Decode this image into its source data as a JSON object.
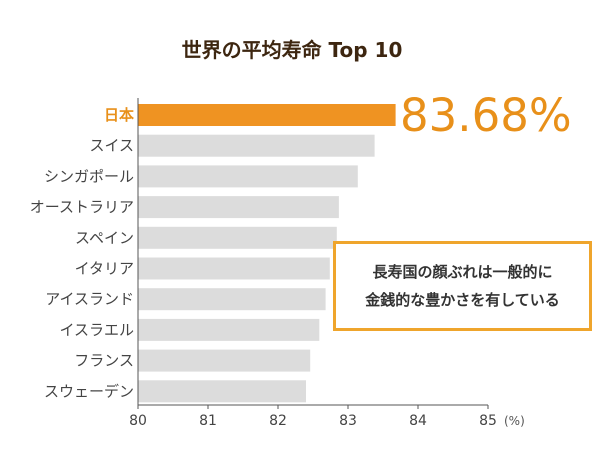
{
  "chart_data": {
    "type": "bar",
    "orientation": "horizontal",
    "title": "世界の平均寿命 Top 10",
    "categories": [
      "日本",
      "スイス",
      "シンガポール",
      "オーストラリア",
      "スペイン",
      "イタリア",
      "アイスランド",
      "イスラエル",
      "フランス",
      "スウェーデン"
    ],
    "values": [
      83.68,
      83.38,
      83.14,
      82.87,
      82.84,
      82.74,
      82.68,
      82.59,
      82.46,
      82.4
    ],
    "highlight_index": 0,
    "highlight_value_label": "83.68%",
    "xlim": [
      80,
      85
    ],
    "xticks": [
      "80",
      "81",
      "82",
      "83",
      "84",
      "85"
    ],
    "x_unit": "(%)",
    "grid": false,
    "colors": {
      "highlight": "#ef9322",
      "bar": "#dcdcdc",
      "title": "#3d2610",
      "annotation_border": "#efa52c"
    },
    "annotation": {
      "line1": "長寿国の顔ぶれは一般的に",
      "line2": "金銭的な豊かさを有している"
    }
  }
}
